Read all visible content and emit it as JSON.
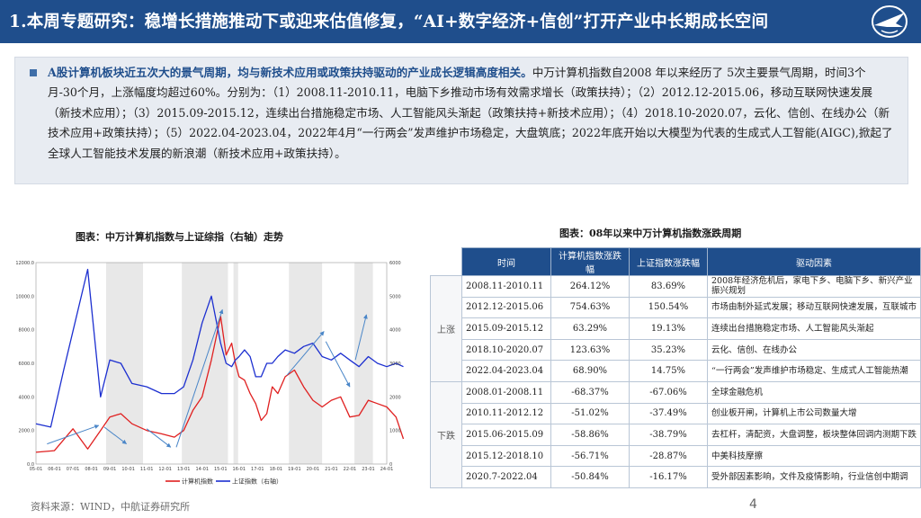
{
  "header": {
    "title": "1.本周专题研究：稳增长措施推动下或迎来估值修复，“AI+数字经济+信创”打开产业中长期成长空间"
  },
  "summary": {
    "lead": "A股计算机板块近五次大的景气周期，均与新技术应用或政策扶持驱动的产业成长逻辑高度相关。",
    "body": "中万计算机指数自2008 年以来经历了 5次主要景气周期，时间3个月-30个月，上涨幅度均超过60%。分别为：（1）2008.11-2010.11，电脑下乡推动市场有效需求增长（政策扶持）；（2）2012.12-2015.06，移动互联网快速发展（新技术应用）；（3）2015.09-2015.12，连续出台措施稳定市场、人工智能风头渐起（政策扶持+新技术应用）；（4）2018.10-2020.07，云化、信创、在线办公（新技术应用+政策扶持）；（5）2022.04-2023.04，2022年4月“一行两会”发声维护市场稳定，大盘筑底；2022年底开始以大模型为代表的生成式人工智能(AIGC),掀起了全球人工智能技术发展的新浪潮（新技术应用+政策扶持）。"
  },
  "chart": {
    "title": "图表：中万计算机指数与上证综指（右轴）走势",
    "legend": [
      "计算机指数",
      "上证指数（右轴）"
    ]
  },
  "chart_data": {
    "type": "line",
    "title": "图表：中万计算机指数与上证综指（右轴）走势",
    "x_tick_labels": [
      "05-01",
      "06-01",
      "07-01",
      "08-01",
      "09-01",
      "10-01",
      "11-01",
      "12-01",
      "13-01",
      "14-01",
      "15-01",
      "16-01",
      "17-01",
      "18-01",
      "19-01",
      "20-01",
      "21-01",
      "22-01",
      "23-01",
      "24-01"
    ],
    "y_left_labels": [
      "0.0",
      "2000.0",
      "4000.0",
      "6000.0",
      "8000.0",
      "10000.0",
      "12000.0"
    ],
    "y_left_range": [
      0,
      12000
    ],
    "y_right_labels": [
      "0",
      "1000",
      "2000",
      "3000",
      "4000",
      "5000",
      "6000"
    ],
    "y_right_range": [
      0,
      6000
    ],
    "series": [
      {
        "name": "计算机指数",
        "axis": "left",
        "color": "#e02020",
        "x": [
          0,
          1,
          2,
          2.8,
          3.5,
          4,
          4.6,
          5.2,
          6,
          6.8,
          7.5,
          8,
          8.5,
          9,
          9.5,
          10,
          10.3,
          10.6,
          10.8,
          11,
          11.3,
          11.6,
          11.9,
          12.2,
          12.5,
          12.8,
          13.1,
          13.5,
          14,
          14.5,
          15,
          15.5,
          16,
          16.5,
          17,
          17.5,
          18,
          18.5,
          19,
          19.5,
          19.9
        ],
        "y": [
          700,
          800,
          2100,
          900,
          2000,
          2800,
          3000,
          2400,
          2000,
          1800,
          1600,
          2000,
          3200,
          4000,
          6200,
          8800,
          6500,
          7200,
          6000,
          5200,
          5000,
          4200,
          3600,
          2600,
          3000,
          4600,
          4200,
          5200,
          5600,
          4600,
          3800,
          3400,
          3800,
          4000,
          2800,
          2900,
          3800,
          3600,
          3400,
          2800,
          1500
        ]
      },
      {
        "name": "上证指数（右轴）",
        "axis": "right",
        "color": "#1c2fd0",
        "x": [
          0,
          0.8,
          1.5,
          2.8,
          3.5,
          4,
          4.6,
          5.2,
          6,
          6.8,
          7.5,
          8,
          8.5,
          9,
          9.5,
          10,
          10.3,
          10.6,
          10.8,
          11,
          11.3,
          11.6,
          11.9,
          12.2,
          12.5,
          12.8,
          13.1,
          13.5,
          14,
          14.5,
          15,
          15.5,
          16,
          16.5,
          17,
          17.5,
          18,
          18.5,
          19,
          19.5,
          19.9
        ],
        "y": [
          1200,
          1100,
          2800,
          5800,
          2000,
          3100,
          3000,
          2400,
          2300,
          2100,
          2100,
          2300,
          3100,
          4200,
          5000,
          3600,
          3000,
          2900,
          3100,
          3200,
          3400,
          3200,
          2600,
          2600,
          3000,
          3000,
          3200,
          3400,
          3300,
          3500,
          3600,
          3200,
          3100,
          3300,
          3100,
          2900,
          3200,
          3000,
          2900,
          3000,
          2900
        ]
      }
    ],
    "up_cycles": [
      [
        3.8,
        5.8
      ],
      [
        7.9,
        10.4
      ],
      [
        10.7,
        10.95
      ],
      [
        13.7,
        15.5
      ],
      [
        17.25,
        18.25
      ]
    ],
    "trend_arrows": [
      {
        "x1": 0.6,
        "y1": 1200,
        "x2": 3.4,
        "y2": 2300
      },
      {
        "x1": 3.7,
        "y1": 2200,
        "x2": 4.9,
        "y2": 1200
      },
      {
        "x1": 6.0,
        "y1": 2100,
        "x2": 7.3,
        "y2": 1000
      },
      {
        "x1": 7.6,
        "y1": 1000,
        "x2": 10.1,
        "y2": 9200
      },
      {
        "x1": 13.6,
        "y1": 5300,
        "x2": 15.6,
        "y2": 7900
      },
      {
        "x1": 15.7,
        "y1": 7300,
        "x2": 17.0,
        "y2": 4600
      },
      {
        "x1": 17.3,
        "y1": 6200,
        "x2": 17.9,
        "y2": 8900
      }
    ]
  },
  "table": {
    "title": "图表：08年以来中万计算机指数涨跌周期",
    "headers": [
      "时间",
      "计算机指数涨跌幅",
      "上证指数涨跌幅",
      "驱动因素"
    ],
    "groups": [
      {
        "label": "上涨",
        "rows": [
          {
            "period": "2008.11-2010.11",
            "computer": "264.12%",
            "shanghai": "83.69%",
            "driver": "2008年经济危机后，家电下乡、电脑下乡、新兴产业振兴规划"
          },
          {
            "period": "2012.12-2015.06",
            "computer": "754.63%",
            "shanghai": "150.54%",
            "driver": "市场由制外延式发展；移动互联网快速发展，互联城市"
          },
          {
            "period": "2015.09-2015.12",
            "computer": "63.29%",
            "shanghai": "19.13%",
            "driver": "连续出台措施稳定市场、人工智能风头渐起"
          },
          {
            "period": "2018.10-2020.07",
            "computer": "123.63%",
            "shanghai": "35.23%",
            "driver": "云化、信创、在线办公"
          },
          {
            "period": "2022.04-2023.04",
            "computer": "68.90%",
            "shanghai": "14.75%",
            "driver": "“一行两会”发声维护市场稳定、生成式人工智能热潮"
          }
        ]
      },
      {
        "label": "下跌",
        "rows": [
          {
            "period": "2008.01-2008.11",
            "computer": "-68.37%",
            "shanghai": "-67.06%",
            "driver": "全球金融危机"
          },
          {
            "period": "2010.11-2012.12",
            "computer": "-51.02%",
            "shanghai": "-37.49%",
            "driver": "创业板开闸，计算机上市公司数量大增"
          },
          {
            "period": "2015.06-2015.09",
            "computer": "-58.86%",
            "shanghai": "-38.79%",
            "driver": "去杠杆，清配资，大盘调整，板块整体回调内测期下跌"
          },
          {
            "period": "2015.12-2018.10",
            "computer": "-56.71%",
            "shanghai": "-28.87%",
            "driver": "中美科技摩擦"
          },
          {
            "period": "2020.7-2022.04",
            "computer": "-50.84%",
            "shanghai": "-16.17%",
            "driver": "受外部因素影响，文件及疫情影响，行业信创中期调"
          }
        ]
      }
    ]
  },
  "footer": {
    "source": "资料来源：WIND，中航证券研究所",
    "page": "4"
  }
}
